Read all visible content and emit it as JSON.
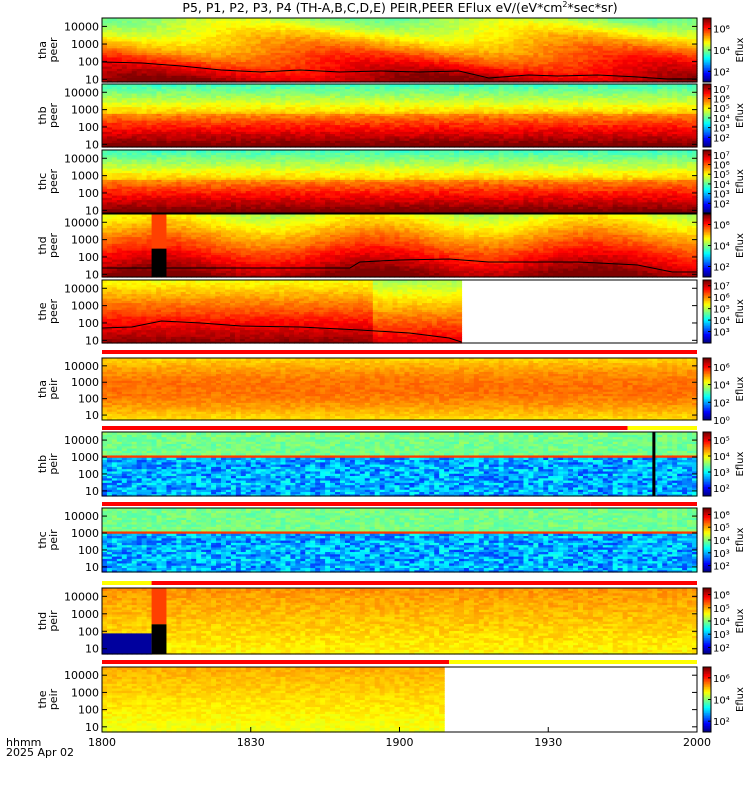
{
  "chart_data": {
    "type": "heatmap",
    "title": "P5, P1, P2, P3, P4 (TH-A,B,C,D,E) PEIR,PEER EFlux eV/(eV*cm",
    "title_sup": "2",
    "title_tail": "*sec*sr)",
    "x_axis": {
      "ticks": [
        "1800",
        "1830",
        "1900",
        "1930",
        "2000"
      ],
      "tick_minutes": [
        0,
        30,
        60,
        90,
        120
      ],
      "range_minutes": [
        0,
        120
      ],
      "label_line1": "hhmm",
      "label_line2": "2025 Apr 02"
    },
    "colorbar_label": "Eflux",
    "panels": [
      {
        "name": "tha-peer",
        "ylabel": [
          "tha",
          "peer"
        ],
        "yscale": "log",
        "ylim": [
          7,
          30000
        ],
        "yticks": [
          "10",
          "100",
          "1000",
          "10000"
        ],
        "colorbar_ticks": [
          "10²",
          "10⁴",
          "10⁶"
        ],
        "cb_range": [
          1,
          7
        ],
        "data_end": 120,
        "sc_potential_curve": true,
        "profile": "peer_a",
        "flag_bar": null
      },
      {
        "name": "thb-peer",
        "ylabel": [
          "thb",
          "peer"
        ],
        "yscale": "log",
        "ylim": [
          7,
          30000
        ],
        "yticks": [
          "10",
          "100",
          "1000",
          "10000"
        ],
        "colorbar_ticks": [
          "10²",
          "10³",
          "10⁴",
          "10⁵",
          "10⁶",
          "10⁷"
        ],
        "cb_range": [
          1,
          7.5
        ],
        "data_end": 120,
        "sc_potential_curve": false,
        "profile": "peer_bc",
        "flag_bar": null
      },
      {
        "name": "thc-peer",
        "ylabel": [
          "thc",
          "peer"
        ],
        "yscale": "log",
        "ylim": [
          7,
          30000
        ],
        "yticks": [
          "10",
          "100",
          "1000",
          "10000"
        ],
        "colorbar_ticks": [
          "10²",
          "10³",
          "10⁴",
          "10⁵",
          "10⁶",
          "10⁷"
        ],
        "cb_range": [
          1,
          7.5
        ],
        "data_end": 120,
        "sc_potential_curve": false,
        "profile": "peer_bc",
        "flag_bar": null
      },
      {
        "name": "thd-peer",
        "ylabel": [
          "thd",
          "peer"
        ],
        "yscale": "log",
        "ylim": [
          7,
          30000
        ],
        "yticks": [
          "10",
          "100",
          "1000",
          "10000"
        ],
        "colorbar_ticks": [
          "10²",
          "10⁴",
          "10⁶"
        ],
        "cb_range": [
          1,
          7
        ],
        "data_end": 120,
        "sc_potential_curve": true,
        "profile": "peer_d",
        "flag_bar": null
      },
      {
        "name": "the-peer",
        "ylabel": [
          "the",
          "peer"
        ],
        "yscale": "log",
        "ylim": [
          7,
          30000
        ],
        "yticks": [
          "10",
          "100",
          "1000",
          "10000"
        ],
        "colorbar_ticks": [
          "10³",
          "10⁴",
          "10⁵",
          "10⁶",
          "10⁷"
        ],
        "cb_range": [
          2,
          7.5
        ],
        "data_end": 72.5,
        "sc_potential_curve": true,
        "profile": "peer_e",
        "flag_bar": null
      },
      {
        "name": "tha-peir",
        "ylabel": [
          "tha",
          "peir"
        ],
        "yscale": "log",
        "ylim": [
          5,
          30000
        ],
        "yticks": [
          "10",
          "100",
          "1000",
          "10000"
        ],
        "colorbar_ticks": [
          "10⁰",
          "10²",
          "10⁴",
          "10⁶"
        ],
        "cb_range": [
          0,
          7
        ],
        "data_end": 120,
        "sc_potential_curve": false,
        "profile": "peir_a",
        "flag_bar": {
          "segments": [
            {
              "start": 0,
              "end": 120,
              "color": "#ff0000"
            }
          ]
        }
      },
      {
        "name": "thb-peir",
        "ylabel": [
          "thb",
          "peir"
        ],
        "yscale": "log",
        "ylim": [
          5,
          30000
        ],
        "yticks": [
          "10",
          "100",
          "1000",
          "10000"
        ],
        "colorbar_ticks": [
          "10²",
          "10³",
          "10⁴",
          "10⁵"
        ],
        "cb_range": [
          1.5,
          5.5
        ],
        "data_end": 120,
        "sc_potential_curve": false,
        "profile": "peir_bc",
        "flag_bar": {
          "segments": [
            {
              "start": 0,
              "end": 106,
              "color": "#ff0000"
            },
            {
              "start": 106,
              "end": 120,
              "color": "#ffff00"
            }
          ]
        }
      },
      {
        "name": "thc-peir",
        "ylabel": [
          "thc",
          "peir"
        ],
        "yscale": "log",
        "ylim": [
          5,
          30000
        ],
        "yticks": [
          "10",
          "100",
          "1000",
          "10000"
        ],
        "colorbar_ticks": [
          "10²",
          "10³",
          "10⁴",
          "10⁵",
          "10⁶"
        ],
        "cb_range": [
          1.5,
          6.5
        ],
        "data_end": 120,
        "sc_potential_curve": false,
        "profile": "peir_bc",
        "flag_bar": {
          "segments": [
            {
              "start": 0,
              "end": 98.5,
              "color": "#ff0000"
            },
            {
              "start": 98.5,
              "end": 120,
              "color": "#ff0000"
            }
          ]
        }
      },
      {
        "name": "thd-peir",
        "ylabel": [
          "thd",
          "peir"
        ],
        "yscale": "log",
        "ylim": [
          5,
          30000
        ],
        "yticks": [
          "10",
          "100",
          "1000",
          "10000"
        ],
        "colorbar_ticks": [
          "10²",
          "10³",
          "10⁴",
          "10⁵",
          "10⁶"
        ],
        "cb_range": [
          1.5,
          6.5
        ],
        "data_end": 120,
        "sc_potential_curve": false,
        "profile": "peir_d",
        "flag_bar": {
          "segments": [
            {
              "start": 0,
              "end": 10,
              "color": "#ffff00"
            },
            {
              "start": 10,
              "end": 120,
              "color": "#ff0000"
            }
          ]
        }
      },
      {
        "name": "the-peir",
        "ylabel": [
          "the",
          "peir"
        ],
        "yscale": "log",
        "ylim": [
          5,
          30000
        ],
        "yticks": [
          "10",
          "100",
          "1000",
          "10000"
        ],
        "colorbar_ticks": [
          "10²",
          "10⁴",
          "10⁶"
        ],
        "cb_range": [
          1,
          7
        ],
        "data_end": 69,
        "sc_potential_curve": false,
        "profile": "peir_e",
        "flag_bar": {
          "segments": [
            {
              "start": 0,
              "end": 70,
              "color": "#ff0000"
            },
            {
              "start": 70,
              "end": 120,
              "color": "#ffff00"
            }
          ]
        }
      }
    ],
    "data_gaps": [
      {
        "panel": "thd-peer",
        "start": 10,
        "end": 13,
        "note": "saturated column"
      },
      {
        "panel": "thd-peir",
        "start": 10,
        "end": 13,
        "note": "saturated column"
      },
      {
        "panel": "thb-peir",
        "start": 111,
        "end": 111.5,
        "note": "dropout"
      }
    ]
  }
}
